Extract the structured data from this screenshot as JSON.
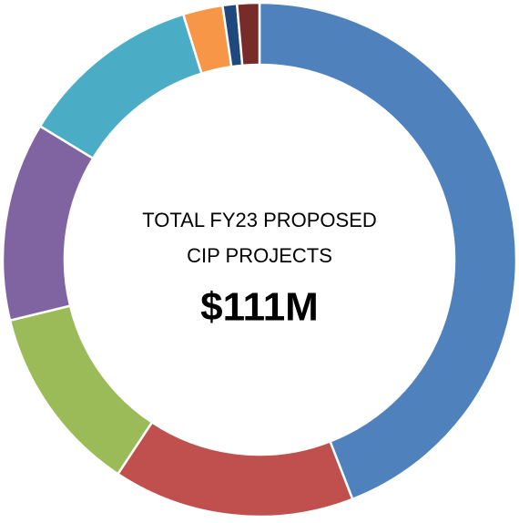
{
  "chart_data": {
    "type": "donut",
    "center_text": [
      "TOTAL FY23 PROPOSED",
      "CIP PROJECTS"
    ],
    "center_value": "$111M",
    "values": [
      44.1,
      15.2,
      11.9,
      12.5,
      11.5,
      2.5,
      0.9,
      1.4
    ],
    "colors": [
      "#4f81bd",
      "#c0504d",
      "#9bbb59",
      "#8064a2",
      "#4bacc6",
      "#f79646",
      "#1f497d",
      "#772c2a"
    ]
  }
}
